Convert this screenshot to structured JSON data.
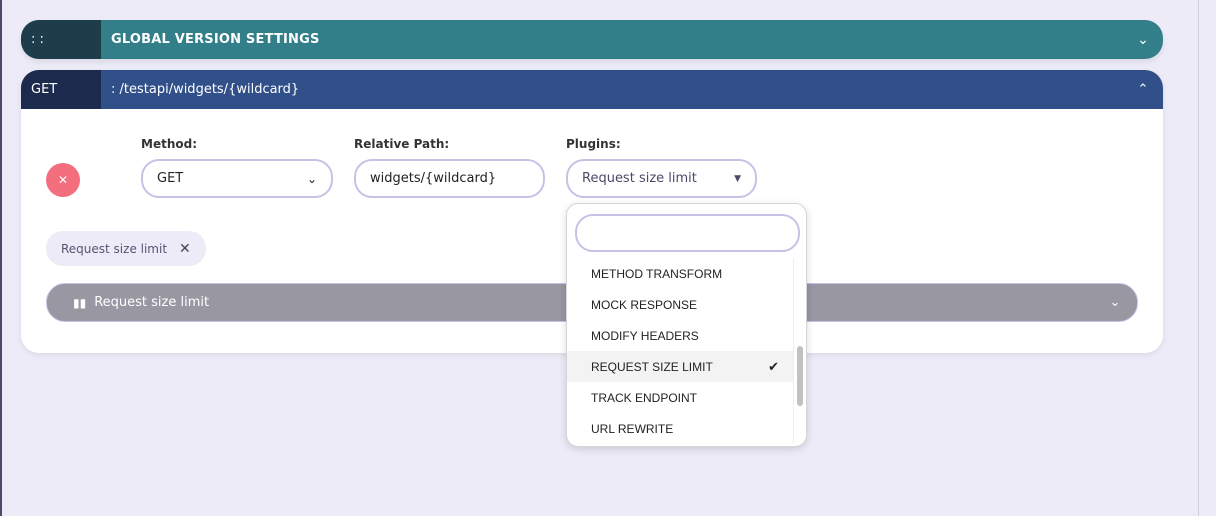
{
  "global_bar": {
    "lead": ": :",
    "title": "GLOBAL VERSION SETTINGS",
    "chevron": "chevron-down-icon"
  },
  "endpoint_bar": {
    "method": "GET",
    "path": ": /testapi/widgets/{wildcard}",
    "chevron": "chevron-up-icon"
  },
  "form": {
    "method_label": "Method:",
    "method_value": "GET",
    "path_label": "Relative Path:",
    "path_value": "widgets/{wildcard}",
    "plugins_label": "Plugins:",
    "plugins_value": "Request size limit"
  },
  "chip": {
    "label": "Request size limit"
  },
  "plugin_panel": {
    "title": "Request size limit",
    "icon": "bar-chart-icon"
  },
  "dropdown": {
    "search_value": "",
    "items": [
      {
        "label": "METHOD TRANSFORM",
        "selected": false
      },
      {
        "label": "MOCK RESPONSE",
        "selected": false
      },
      {
        "label": "MODIFY HEADERS",
        "selected": false
      },
      {
        "label": "REQUEST SIZE LIMIT",
        "selected": true
      },
      {
        "label": "TRACK ENDPOINT",
        "selected": false
      },
      {
        "label": "URL REWRITE",
        "selected": false
      }
    ]
  },
  "colors": {
    "global": "#327f8a",
    "endpoint": "#31508a",
    "delete": "#f46f7d",
    "panel": "#9897a2"
  }
}
